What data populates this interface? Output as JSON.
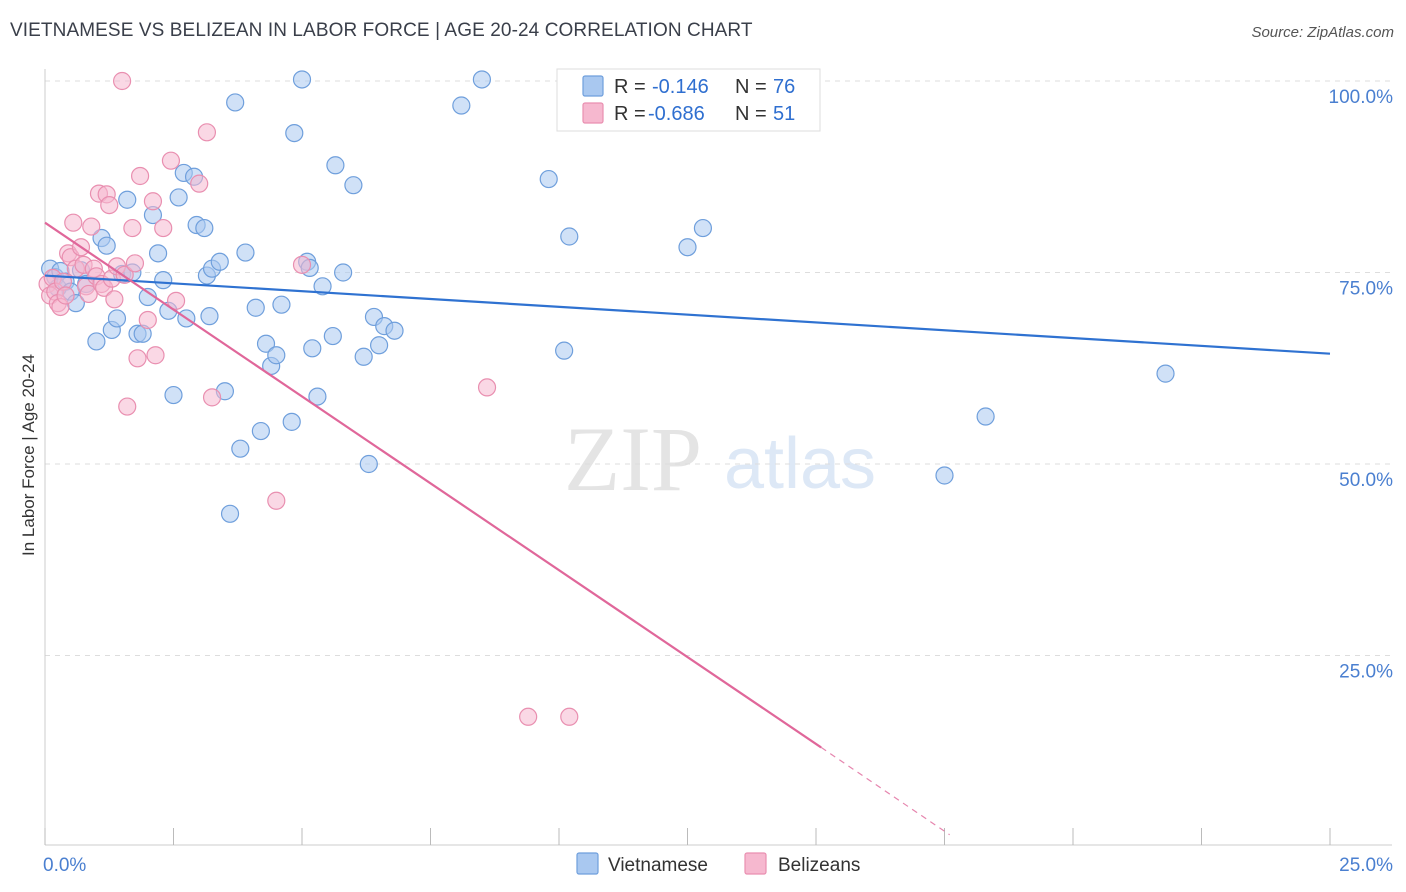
{
  "title": "VIETNAMESE VS BELIZEAN IN LABOR FORCE | AGE 20-24 CORRELATION CHART",
  "source": "Source: ZipAtlas.com",
  "watermark": {
    "zip": "ZIP",
    "atlas": "atlas"
  },
  "colors": {
    "blue_fill": "#a9c8f0",
    "blue_stroke": "#6f9fdc",
    "blue_line": "#2f72d1",
    "pink_fill": "#f6b8cf",
    "pink_stroke": "#e98fb0",
    "pink_line": "#e0679a",
    "grid": "#dddddd",
    "axis_label": "#4a7fd0"
  },
  "legend": {
    "rows": [
      {
        "r_label": "R =",
        "r_value": "-0.146",
        "n_label": "N =",
        "n_value": "76"
      },
      {
        "r_label": "R =",
        "r_value": "-0.686",
        "n_label": "N =",
        "n_value": "51"
      }
    ]
  },
  "bottom_legend": [
    "Vietnamese",
    "Belizeans"
  ],
  "chart_data": {
    "type": "scatter",
    "title": "VIETNAMESE VS BELIZEAN IN LABOR FORCE | AGE 20-24 CORRELATION CHART",
    "xlabel": "",
    "ylabel": "In Labor Force | Age 20-24",
    "xlim": [
      0,
      25
    ],
    "ylim": [
      0,
      102
    ],
    "x_ticks": [
      0,
      2.5,
      5,
      7.5,
      10,
      12.5,
      15,
      17.5,
      20,
      22.5,
      25
    ],
    "x_tick_labels": {
      "0": "0.0%",
      "25": "25.0%"
    },
    "y_ticks": [
      25,
      50,
      75,
      100
    ],
    "y_tick_labels": [
      "25.0%",
      "50.0%",
      "75.0%",
      "100.0%"
    ],
    "series": [
      {
        "name": "Vietnamese",
        "trend": {
          "x0": 0,
          "y0": 74.6,
          "x1": 25,
          "y1": 64.4
        },
        "points": [
          [
            0.1,
            75.5
          ],
          [
            0.2,
            74.4
          ],
          [
            0.25,
            73.0
          ],
          [
            0.3,
            75.2
          ],
          [
            0.4,
            73.8
          ],
          [
            0.5,
            72.5
          ],
          [
            0.6,
            71.0
          ],
          [
            0.7,
            75.3
          ],
          [
            0.8,
            73.5
          ],
          [
            1.0,
            66.0
          ],
          [
            1.1,
            79.5
          ],
          [
            1.2,
            78.5
          ],
          [
            1.3,
            67.5
          ],
          [
            1.4,
            69.0
          ],
          [
            1.5,
            74.8
          ],
          [
            1.6,
            84.5
          ],
          [
            1.7,
            75.0
          ],
          [
            1.8,
            67.0
          ],
          [
            1.9,
            67.0
          ],
          [
            2.0,
            71.8
          ],
          [
            2.1,
            82.5
          ],
          [
            2.2,
            77.5
          ],
          [
            2.3,
            74.0
          ],
          [
            2.4,
            70.0
          ],
          [
            2.5,
            59.0
          ],
          [
            2.6,
            84.8
          ],
          [
            2.7,
            88.0
          ],
          [
            2.75,
            69.0
          ],
          [
            2.9,
            87.5
          ],
          [
            2.95,
            81.2
          ],
          [
            3.1,
            80.8
          ],
          [
            3.15,
            74.6
          ],
          [
            3.2,
            69.3
          ],
          [
            3.25,
            75.5
          ],
          [
            3.4,
            76.4
          ],
          [
            3.5,
            59.5
          ],
          [
            3.6,
            43.5
          ],
          [
            3.7,
            97.2
          ],
          [
            3.8,
            52.0
          ],
          [
            3.9,
            77.6
          ],
          [
            4.1,
            70.4
          ],
          [
            4.2,
            54.3
          ],
          [
            4.3,
            65.7
          ],
          [
            4.4,
            62.8
          ],
          [
            4.5,
            64.2
          ],
          [
            4.6,
            70.8
          ],
          [
            4.8,
            55.5
          ],
          [
            4.85,
            93.2
          ],
          [
            5.0,
            100.2
          ],
          [
            5.1,
            76.4
          ],
          [
            5.15,
            75.6
          ],
          [
            5.2,
            65.1
          ],
          [
            5.3,
            58.8
          ],
          [
            5.4,
            73.2
          ],
          [
            5.6,
            66.7
          ],
          [
            5.65,
            89.0
          ],
          [
            5.8,
            75.0
          ],
          [
            6.0,
            86.4
          ],
          [
            6.2,
            64.0
          ],
          [
            6.3,
            50.0
          ],
          [
            6.4,
            69.2
          ],
          [
            6.5,
            65.5
          ],
          [
            6.6,
            68.0
          ],
          [
            6.8,
            67.4
          ],
          [
            8.1,
            96.8
          ],
          [
            8.5,
            100.2
          ],
          [
            9.8,
            87.2
          ],
          [
            10.1,
            64.8
          ],
          [
            10.2,
            79.7
          ],
          [
            12.5,
            78.3
          ],
          [
            12.8,
            80.8
          ],
          [
            17.5,
            48.5
          ],
          [
            18.3,
            56.2
          ],
          [
            21.8,
            61.8
          ]
        ]
      },
      {
        "name": "Belizeans",
        "trend": {
          "x0": 0,
          "y0": 81.5,
          "x1": 15.1,
          "y1": 13.0,
          "dash_x1": 17.6,
          "dash_y1": 1.6
        },
        "points": [
          [
            0.05,
            73.5
          ],
          [
            0.1,
            72.0
          ],
          [
            0.15,
            74.3
          ],
          [
            0.2,
            72.5
          ],
          [
            0.25,
            71.0
          ],
          [
            0.3,
            70.5
          ],
          [
            0.35,
            73.8
          ],
          [
            0.4,
            72.0
          ],
          [
            0.45,
            77.5
          ],
          [
            0.5,
            77.0
          ],
          [
            0.55,
            81.5
          ],
          [
            0.6,
            75.5
          ],
          [
            0.7,
            78.3
          ],
          [
            0.75,
            76.0
          ],
          [
            0.8,
            73.2
          ],
          [
            0.85,
            72.2
          ],
          [
            0.9,
            81.0
          ],
          [
            0.95,
            75.5
          ],
          [
            1.0,
            74.5
          ],
          [
            1.05,
            85.3
          ],
          [
            1.1,
            73.5
          ],
          [
            1.15,
            73.0
          ],
          [
            1.2,
            85.2
          ],
          [
            1.25,
            83.8
          ],
          [
            1.3,
            74.2
          ],
          [
            1.35,
            71.5
          ],
          [
            1.4,
            75.8
          ],
          [
            1.5,
            100.0
          ],
          [
            1.55,
            74.7
          ],
          [
            1.6,
            57.5
          ],
          [
            1.7,
            80.8
          ],
          [
            1.75,
            76.2
          ],
          [
            1.8,
            63.8
          ],
          [
            1.85,
            87.6
          ],
          [
            2.0,
            68.8
          ],
          [
            2.1,
            84.3
          ],
          [
            2.15,
            64.2
          ],
          [
            2.3,
            80.8
          ],
          [
            2.45,
            89.6
          ],
          [
            2.55,
            71.3
          ],
          [
            3.0,
            86.6
          ],
          [
            3.15,
            93.3
          ],
          [
            3.25,
            58.7
          ],
          [
            4.5,
            45.2
          ],
          [
            5.0,
            76.0
          ],
          [
            8.6,
            60.0
          ],
          [
            9.4,
            17.0
          ],
          [
            10.2,
            17.0
          ]
        ]
      }
    ]
  }
}
